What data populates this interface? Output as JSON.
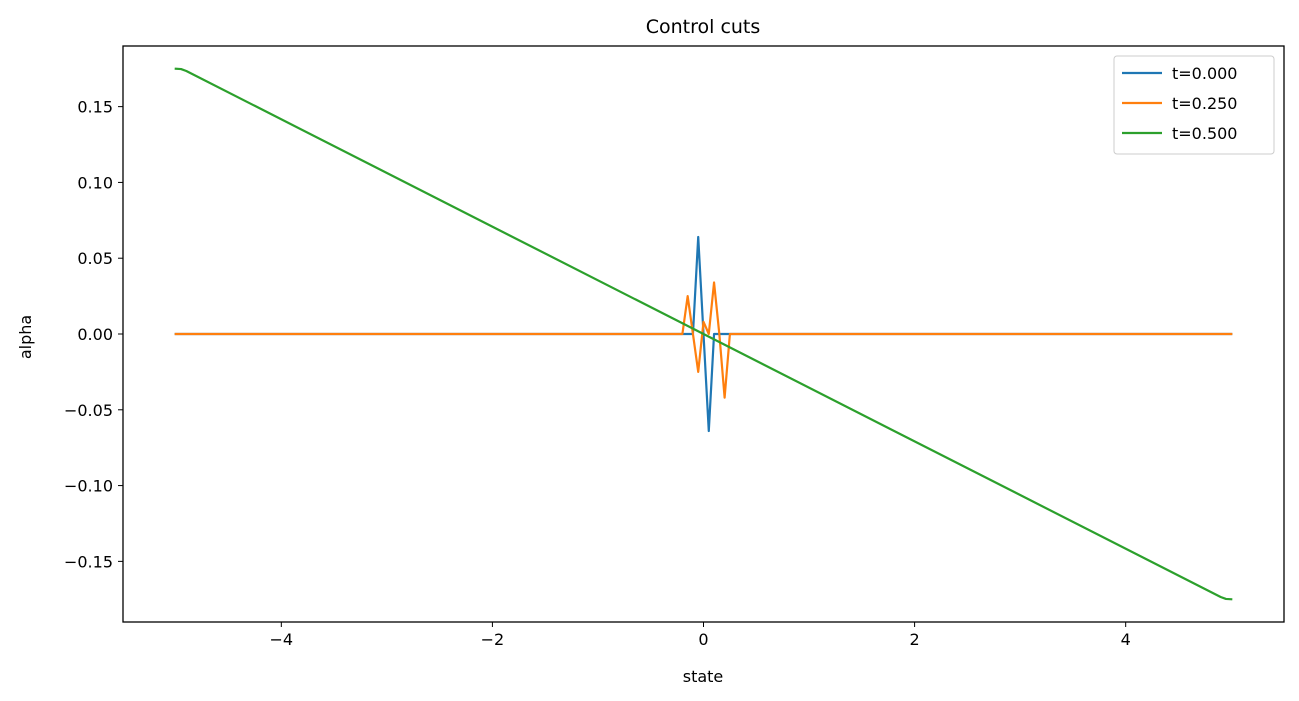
{
  "chart_data": {
    "type": "line",
    "title": "Control cuts",
    "xlabel": "state",
    "ylabel": "alpha",
    "xlim": [
      -5.5,
      5.5
    ],
    "ylim": [
      -0.19,
      0.19
    ],
    "xticks": [
      -4,
      -2,
      0,
      2,
      4
    ],
    "xtick_labels": [
      "−4",
      "−2",
      "0",
      "2",
      "4"
    ],
    "yticks": [
      -0.15,
      -0.1,
      -0.05,
      0.0,
      0.05,
      0.1,
      0.15
    ],
    "ytick_labels": [
      "−0.15",
      "−0.10",
      "−0.05",
      "0.00",
      "0.05",
      "0.10",
      "0.15"
    ],
    "grid": false,
    "legend_position": "top-right",
    "series": [
      {
        "name": "t=0.000",
        "color": "#1f77b4",
        "x": [
          -5.0,
          -0.1,
          -0.05,
          0.0,
          0.05,
          0.1,
          0.15,
          5.0
        ],
        "y": [
          0.0,
          0.0,
          0.064,
          0.0,
          -0.064,
          0.0,
          0.0,
          0.0
        ]
      },
      {
        "name": "t=0.250",
        "color": "#ff7f0e",
        "x": [
          -5.0,
          -0.2,
          -0.15,
          -0.1,
          -0.05,
          0.0,
          0.05,
          0.1,
          0.15,
          0.2,
          0.25,
          5.0
        ],
        "y": [
          0.0,
          0.0,
          0.025,
          0.0,
          -0.025,
          0.008,
          0.0,
          0.034,
          0.0,
          -0.042,
          0.0,
          0.0
        ]
      },
      {
        "name": "t=0.500",
        "color": "#2ca02c",
        "x": [
          -5.0,
          -4.95,
          -4.9,
          4.9,
          4.95,
          5.0
        ],
        "y": [
          0.175,
          0.1748,
          0.1735,
          -0.1735,
          -0.1748,
          -0.175
        ]
      }
    ]
  }
}
